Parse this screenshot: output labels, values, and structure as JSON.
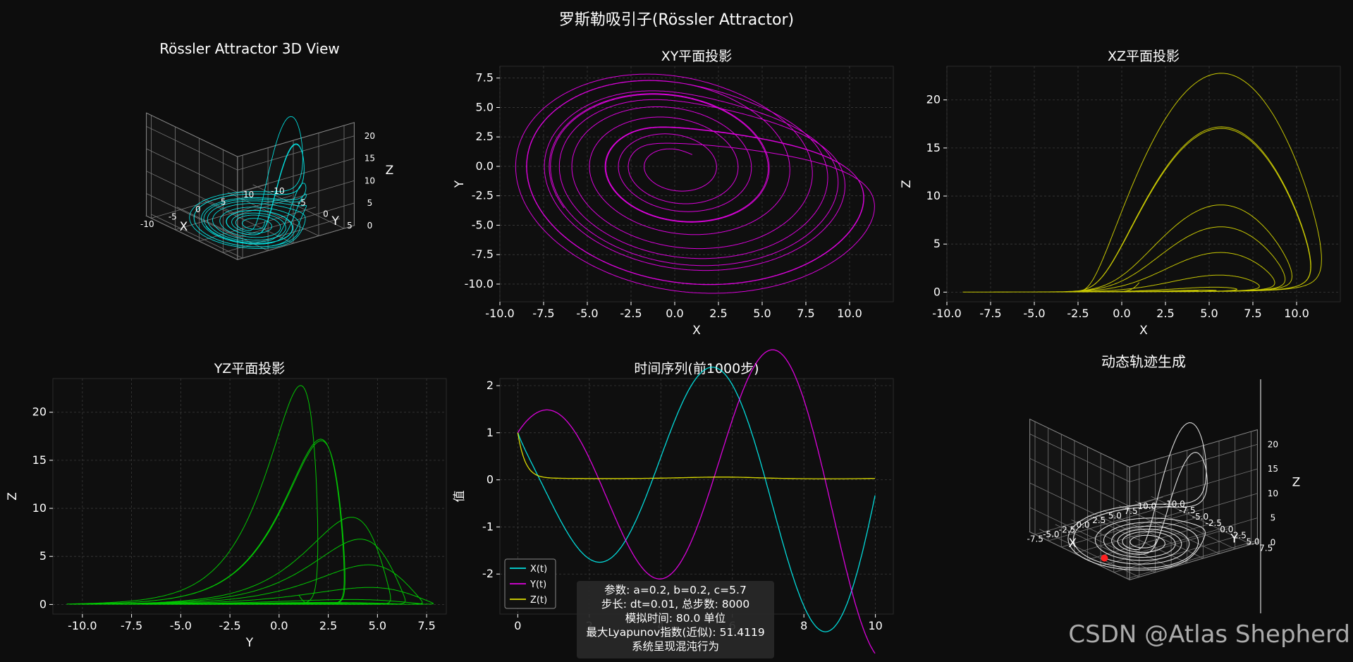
{
  "figure": {
    "suptitle": "罗斯勒吸引子(Rössler Attractor)",
    "watermark": "CSDN @Atlas Shepherd",
    "info": [
      "参数: a=0.2, b=0.2, c=5.7",
      "步长: dt=0.01, 总步数: 8000",
      "模拟时间: 80.0 单位",
      "最大Lyapunov指数(近似): 51.4119",
      "系统呈现混沌行为"
    ]
  },
  "chart_data": [
    {
      "id": "view3d",
      "type": "line3d",
      "title": "Rössler Attractor 3D View",
      "xlabel": "X",
      "ylabel": "Y",
      "zlabel": "Z",
      "xticks": [
        "-10",
        "-5",
        "0",
        "5",
        "10"
      ],
      "yticks": [
        "-10",
        "-5",
        "0",
        "5"
      ],
      "zticks": [
        "0",
        "5",
        "10",
        "15",
        "20"
      ],
      "color": "#00ffff",
      "params": {
        "a": 0.2,
        "b": 0.2,
        "c": 5.7,
        "dt": 0.01,
        "steps": 8000,
        "x0": 1.0,
        "y0": 1.0,
        "z0": 1.0
      }
    },
    {
      "id": "xy",
      "type": "line",
      "title": "XY平面投影",
      "xlabel": "X",
      "ylabel": "Y",
      "xlim": [
        -10.0,
        12.5
      ],
      "ylim": [
        -11.5,
        8.5
      ],
      "xticks": [
        "-10.0",
        "-7.5",
        "-5.0",
        "-2.5",
        "0.0",
        "2.5",
        "5.0",
        "7.5",
        "10.0"
      ],
      "yticks": [
        "-10.0",
        "-7.5",
        "-5.0",
        "-2.5",
        "0.0",
        "2.5",
        "5.0",
        "7.5"
      ],
      "grid": true,
      "color": "#ff00ff"
    },
    {
      "id": "xz",
      "type": "line",
      "title": "XZ平面投影",
      "xlabel": "X",
      "ylabel": "Z",
      "xlim": [
        -10.0,
        12.5
      ],
      "ylim": [
        -1,
        23.5
      ],
      "xticks": [
        "-10.0",
        "-7.5",
        "-5.0",
        "-2.5",
        "0.0",
        "2.5",
        "5.0",
        "7.5",
        "10.0"
      ],
      "yticks": [
        "0",
        "5",
        "10",
        "15",
        "20"
      ],
      "grid": true,
      "color": "#e6e600"
    },
    {
      "id": "yz",
      "type": "line",
      "title": "YZ平面投影",
      "xlabel": "Y",
      "ylabel": "Z",
      "xlim": [
        -11.5,
        8.5
      ],
      "ylim": [
        -1,
        23.5
      ],
      "xticks": [
        "-10.0",
        "-7.5",
        "-5.0",
        "-2.5",
        "0.0",
        "2.5",
        "5.0",
        "7.5"
      ],
      "yticks": [
        "0",
        "5",
        "10",
        "15",
        "20"
      ],
      "grid": true,
      "color": "#00e600"
    },
    {
      "id": "ts",
      "type": "line",
      "title": "时间序列(前1000步)",
      "xlabel": "",
      "ylabel": "值",
      "xlim": [
        -0.5,
        10.5
      ],
      "ylim": [
        -2.85,
        2.15
      ],
      "xticks": [
        "0",
        "2",
        "4",
        "6",
        "8",
        "10"
      ],
      "yticks": [
        "-2",
        "-1",
        "0",
        "1",
        "2"
      ],
      "grid": true,
      "legend": "lower-left",
      "series": [
        {
          "name": "X(t)",
          "color": "#00ffff"
        },
        {
          "name": "Y(t)",
          "color": "#ff00ff"
        },
        {
          "name": "Z(t)",
          "color": "#ffff00"
        }
      ]
    },
    {
      "id": "anim",
      "type": "line3d",
      "title": "动态轨迹生成",
      "xlabel": "X",
      "ylabel": "Y",
      "zlabel": "Z",
      "xticks": [
        "-7.5",
        "-5.0",
        "-2.5",
        "0.0",
        "2.5",
        "5.0",
        "7.5",
        "10.0"
      ],
      "yticks": [
        "-10.0",
        "-7.5",
        "-5.0",
        "-2.5",
        "0.0",
        "2.5",
        "5.0",
        "7.5"
      ],
      "zticks": [
        "0",
        "5",
        "10",
        "15",
        "20"
      ],
      "color": "#ffffff",
      "marker_color": "#ff2020",
      "visible_steps": 5000
    }
  ]
}
